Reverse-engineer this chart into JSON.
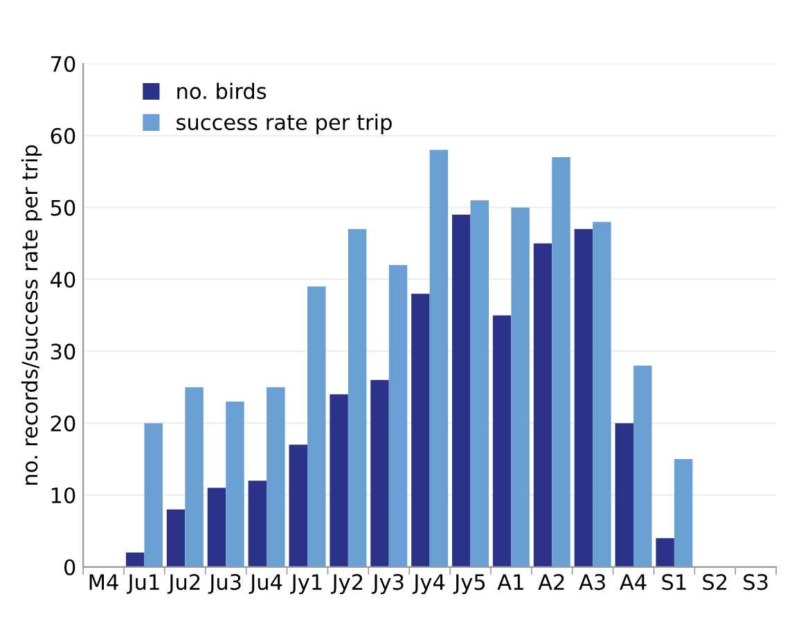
{
  "chart_data": {
    "type": "bar",
    "ylabel": "no. records/success rate per trip",
    "categories": [
      "M4",
      "Ju1",
      "Ju2",
      "Ju3",
      "Ju4",
      "Jy1",
      "Jy2",
      "Jy3",
      "Jy4",
      "Jy5",
      "A1",
      "A2",
      "A3",
      "A4",
      "S1",
      "S2",
      "S3"
    ],
    "series": [
      {
        "name": "no. birds",
        "color": "#2b3288",
        "values": [
          0,
          2,
          8,
          11,
          12,
          17,
          24,
          26,
          38,
          49,
          35,
          45,
          47,
          20,
          4,
          0,
          0
        ]
      },
      {
        "name": "success rate per trip",
        "color": "#6a9fd4",
        "values": [
          0,
          20,
          25,
          23,
          25,
          39,
          47,
          42,
          58,
          51,
          50,
          57,
          48,
          28,
          15,
          0,
          0
        ]
      }
    ],
    "ylim": [
      0,
      70
    ],
    "yticks": [
      0,
      10,
      20,
      30,
      40,
      50,
      60,
      70
    ],
    "grid": "y",
    "legend": "top left"
  }
}
